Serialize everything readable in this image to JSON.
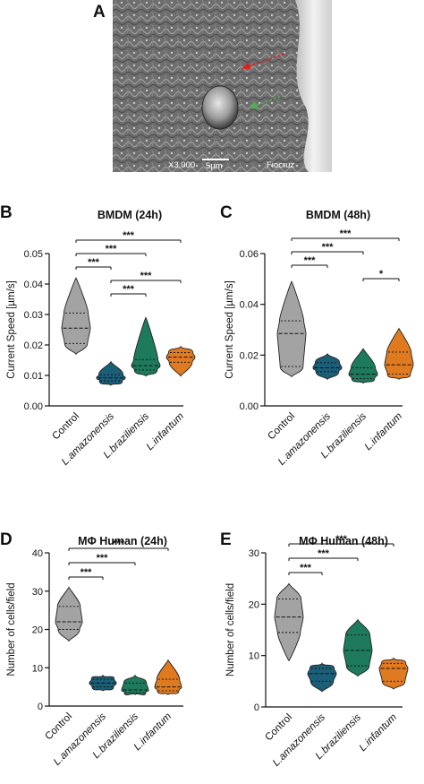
{
  "colors": {
    "control": "#a3a3a3",
    "amazonensis": "#1b5e78",
    "braziliensis": "#1e7a5c",
    "infantum": "#e07a20"
  },
  "micrograph": {
    "letter": "A",
    "magnification": "X3,000",
    "scale": "5µm",
    "facility": "Fiocruz"
  },
  "chart_data": [
    {
      "panel": "B",
      "type": "violin",
      "title": "BMDM (24h)",
      "ylabel": "Current Speed [µm/s]",
      "ylim": [
        0.0,
        0.05
      ],
      "yticks": [
        "0.00",
        "0.01",
        "0.02",
        "0.03",
        "0.04",
        "0.05"
      ],
      "categories": [
        "Control",
        "L.amazonensis",
        "L.braziliensis",
        "L.infantum"
      ],
      "series": [
        {
          "min": 0.017,
          "q1": 0.0205,
          "median": 0.0255,
          "q3": 0.0305,
          "max": 0.042
        },
        {
          "min": 0.0068,
          "q1": 0.0082,
          "median": 0.0092,
          "q3": 0.0102,
          "max": 0.0145
        },
        {
          "min": 0.0098,
          "q1": 0.0118,
          "median": 0.0132,
          "q3": 0.0152,
          "max": 0.029
        },
        {
          "min": 0.0098,
          "q1": 0.0143,
          "median": 0.016,
          "q3": 0.0175,
          "max": 0.0195
        }
      ],
      "significance": [
        {
          "from": 0,
          "to": 3,
          "label": "***"
        },
        {
          "from": 0,
          "to": 2,
          "label": "***"
        },
        {
          "from": 0,
          "to": 1,
          "label": "***"
        },
        {
          "from": 1,
          "to": 3,
          "label": "***"
        },
        {
          "from": 1,
          "to": 2,
          "label": "***"
        }
      ]
    },
    {
      "panel": "C",
      "type": "violin",
      "title": "BMDM  (48h)",
      "ylabel": "Current Speed [µm/s]",
      "ylim": [
        0.0,
        0.06
      ],
      "yticks": [
        "0.00",
        "0.02",
        "0.04",
        "0.06"
      ],
      "categories": [
        "Control",
        "L.amazonensis",
        "L.braziliensis",
        "L.infantum"
      ],
      "series": [
        {
          "min": 0.0115,
          "q1": 0.0155,
          "median": 0.0285,
          "q3": 0.0335,
          "max": 0.049
        },
        {
          "min": 0.0105,
          "q1": 0.0135,
          "median": 0.015,
          "q3": 0.017,
          "max": 0.0205
        },
        {
          "min": 0.009,
          "q1": 0.0108,
          "median": 0.0125,
          "q3": 0.015,
          "max": 0.0225
        },
        {
          "min": 0.0105,
          "q1": 0.0125,
          "median": 0.0162,
          "q3": 0.0212,
          "max": 0.0305
        }
      ],
      "significance": [
        {
          "from": 0,
          "to": 3,
          "label": "***"
        },
        {
          "from": 0,
          "to": 2,
          "label": "***"
        },
        {
          "from": 0,
          "to": 1,
          "label": "***"
        },
        {
          "from": 2,
          "to": 3,
          "label": "*"
        }
      ]
    },
    {
      "panel": "D",
      "type": "violin",
      "title": "MΦ Human (24h)",
      "ylabel": "Number of cells/field",
      "ylim": [
        0,
        40
      ],
      "yticks": [
        "0",
        "10",
        "20",
        "30",
        "40"
      ],
      "categories": [
        "Control",
        "L.amazonensis",
        "L.braziliensis",
        "L.infantum"
      ],
      "series": [
        {
          "min": 17,
          "q1": 20,
          "median": 22,
          "q3": 26,
          "max": 31
        },
        {
          "min": 4,
          "q1": 5,
          "median": 6,
          "q3": 7,
          "max": 8
        },
        {
          "min": 3,
          "q1": 3.5,
          "median": 4.2,
          "q3": 6,
          "max": 8
        },
        {
          "min": 3,
          "q1": 4,
          "median": 5,
          "q3": 7,
          "max": 12
        }
      ],
      "significance": [
        {
          "from": 0,
          "to": 3,
          "label": "***"
        },
        {
          "from": 0,
          "to": 2,
          "label": "***"
        },
        {
          "from": 0,
          "to": 1,
          "label": "***"
        }
      ]
    },
    {
      "panel": "E",
      "type": "violin",
      "title": "MΦ Human (48h)",
      "ylabel": "Number of cells/field",
      "ylim": [
        0,
        30
      ],
      "yticks": [
        "0",
        "10",
        "20",
        "30"
      ],
      "categories": [
        "Control",
        "L.amazonensis",
        "L.braziliensis",
        "L.infantum"
      ],
      "series": [
        {
          "min": 9,
          "q1": 14.5,
          "median": 17.5,
          "q3": 21,
          "max": 24
        },
        {
          "min": 3,
          "q1": 5,
          "median": 6.5,
          "q3": 7.5,
          "max": 8.5
        },
        {
          "min": 6,
          "q1": 8,
          "median": 11,
          "q3": 14,
          "max": 17
        },
        {
          "min": 3.5,
          "q1": 5,
          "median": 7.5,
          "q3": 8.5,
          "max": 9.5
        }
      ],
      "significance": [
        {
          "from": 0,
          "to": 3,
          "label": "***"
        },
        {
          "from": 0,
          "to": 2,
          "label": "***"
        },
        {
          "from": 0,
          "to": 1,
          "label": "***"
        }
      ]
    }
  ]
}
